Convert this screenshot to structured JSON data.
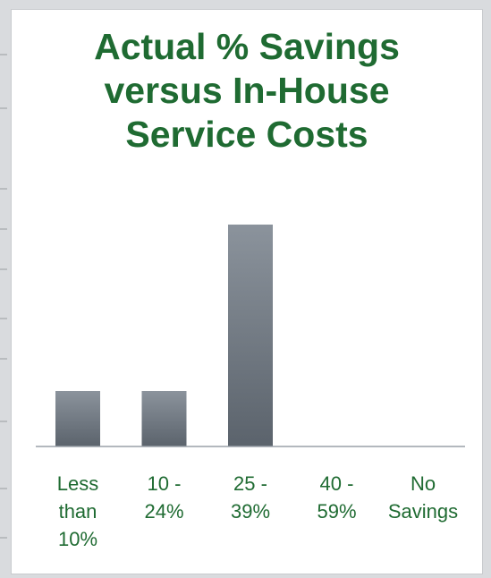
{
  "chart_data": {
    "type": "bar",
    "title_lines": [
      "Actual % Savings",
      "versus In-House",
      "Service Costs"
    ],
    "categories": [
      [
        "Less",
        "than",
        "10%"
      ],
      [
        "10 -",
        "24%"
      ],
      [
        "25 -",
        "39%"
      ],
      [
        "40 -",
        "59%"
      ],
      [
        "No",
        "Savings"
      ]
    ],
    "values": [
      1,
      1,
      4,
      0,
      0
    ],
    "ylim": [
      0,
      4
    ],
    "xlabel": "",
    "ylabel": "",
    "grid": false,
    "legend": "none",
    "colors": {
      "title": "#1f6b32",
      "bar_top": "#8b939c",
      "bar_bottom": "#5b636c",
      "axis": "#9aa1a8",
      "label": "#1f6b32"
    }
  }
}
